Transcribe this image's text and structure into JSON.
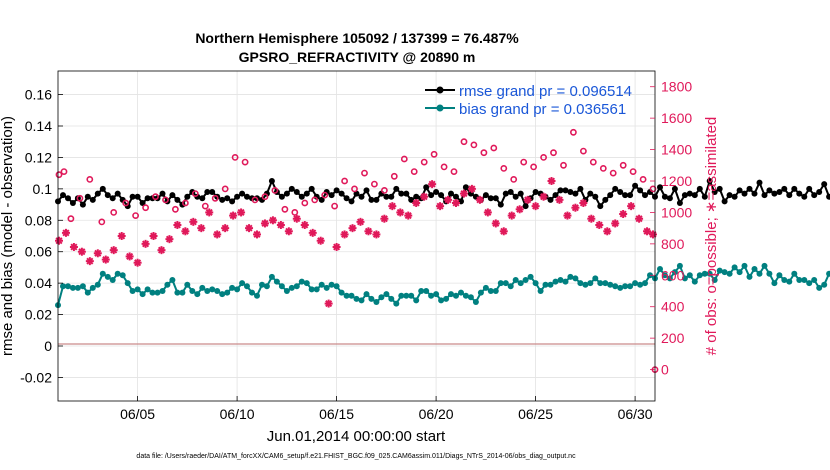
{
  "chart_data": {
    "type": "line",
    "title_line1": "Northern Hemisphere 105092 / 137399 = 76.487%",
    "title_line2": "GPSRO_REFRACTIVITY @ 20890 m",
    "xlabel": "Jun.01,2014 00:00:00 start",
    "ylabel_left": "rmse and bias (model - observation)",
    "ylabel_right": "# of obs: o=possible; ∗=assimilated",
    "footer": "data file: /Users/raeder/DAI/ATM_forcXX/CAM6_setup/f.e21.FHIST_BGC.f09_025.CAM6assim.011/Diags_NTrS_2014-06/obs_diag_output.nc",
    "x_range_days": [
      1.0,
      31.0
    ],
    "x_ticks": [
      {
        "day": 5,
        "label": "06/05"
      },
      {
        "day": 10,
        "label": "06/10"
      },
      {
        "day": 15,
        "label": "06/15"
      },
      {
        "day": 20,
        "label": "06/20"
      },
      {
        "day": 25,
        "label": "06/25"
      },
      {
        "day": 30,
        "label": "06/30"
      }
    ],
    "ylim_left": [
      -0.035,
      0.175
    ],
    "yticks_left": [
      "-0.02",
      "0",
      "0.02",
      "0.04",
      "0.06",
      "0.08",
      "0.1",
      "0.12",
      "0.14",
      "0.16"
    ],
    "ylim_right": [
      -200,
      1900
    ],
    "yticks_right": [
      "0",
      "200",
      "400",
      "600",
      "800",
      "1000",
      "1200",
      "1400",
      "1600",
      "1800"
    ],
    "grid": true,
    "legend_position": "top-right",
    "legend": [
      {
        "label": "rmse grand pr = 0.096514",
        "color": "#000000"
      },
      {
        "label": "bias grand pr = 0.036561",
        "color": "#008080"
      }
    ],
    "series": [
      {
        "name": "rmse",
        "color": "#000000",
        "start_day": 1.0,
        "step_days": 0.25,
        "values": [
          0.092,
          0.096,
          0.094,
          0.091,
          0.094,
          0.09,
          0.095,
          0.093,
          0.097,
          0.1,
          0.096,
          0.094,
          0.097,
          0.093,
          0.089,
          0.095,
          0.095,
          0.091,
          0.094,
          0.094,
          0.094,
          0.097,
          0.092,
          0.096,
          0.093,
          0.09,
          0.095,
          0.098,
          0.095,
          0.094,
          0.098,
          0.098,
          0.095,
          0.093,
          0.094,
          0.092,
          0.095,
          0.097,
          0.095,
          0.094,
          0.094,
          0.093,
          0.097,
          0.105,
          0.098,
          0.095,
          0.097,
          0.1,
          0.098,
          0.095,
          0.097,
          0.1,
          0.095,
          0.093,
          0.098,
          0.096,
          0.099,
          0.097,
          0.094,
          0.092,
          0.097,
          0.095,
          0.099,
          0.093,
          0.093,
          0.097,
          0.095,
          0.095,
          0.1,
          0.097,
          0.097,
          0.093,
          0.095,
          0.094,
          0.101,
          0.096,
          0.098,
          0.096,
          0.092,
          0.097,
          0.095,
          0.092,
          0.101,
          0.097,
          0.095,
          0.093,
          0.096,
          0.094,
          0.094,
          0.09,
          0.097,
          0.098,
          0.095,
          0.097,
          0.089,
          0.094,
          0.098,
          0.097,
          0.095,
          0.093,
          0.096,
          0.099,
          0.099,
          0.098,
          0.097,
          0.1,
          0.093,
          0.097,
          0.095,
          0.089,
          0.093,
          0.096,
          0.1,
          0.098,
          0.096,
          0.096,
          0.102,
          0.099,
          0.096,
          0.098,
          0.095,
          0.101,
          0.095,
          0.094,
          0.1,
          0.091,
          0.096,
          0.097,
          0.096,
          0.1,
          0.095,
          0.105,
          0.098,
          0.1,
          0.092,
          0.096,
          0.095,
          0.099,
          0.097,
          0.1,
          0.097,
          0.104,
          0.096,
          0.099,
          0.097,
          0.098,
          0.1,
          0.096,
          0.1,
          0.097,
          0.095,
          0.1,
          0.096,
          0.098,
          0.103,
          0.095,
          0.095,
          0.098,
          0.094,
          0.097,
          0.103,
          0.106,
          0.097,
          0.094,
          0.097,
          0.099,
          0.098,
          0.097,
          0.095,
          0.1,
          0.103,
          0.096,
          0.1,
          0.094,
          0.096,
          0.097,
          0.094,
          0.098,
          0.104,
          0.098,
          0.097,
          0.092,
          0.099,
          0.093,
          0.097,
          0.096,
          0.092,
          0.095,
          0.094,
          0.094,
          0.1,
          0.096,
          0.091,
          0.088,
          0.094,
          0.096,
          0.089,
          0.096,
          0.091,
          0.092,
          0.089,
          0.091,
          0.09,
          0.096,
          0.093,
          0.09,
          0.094,
          0.096,
          0.095,
          0.089,
          0.096,
          0.09,
          0.094,
          0.092,
          0.094,
          0.091,
          0.09,
          0.088,
          0.091,
          0.094,
          0.091,
          0.09,
          0.087,
          0.095,
          0.088,
          0.089,
          0.093,
          0.087,
          0.096,
          0.09,
          0.093,
          0.089,
          0.087,
          0.088,
          0.095,
          0.089,
          0.09,
          0.086,
          0.092,
          0.089,
          0.095,
          0.092,
          0.087,
          0.09,
          0.091,
          0.088,
          0.093,
          0.088,
          0.09,
          0.089,
          0.094,
          0.086,
          0.085,
          0.09,
          0.088,
          0.094,
          0.085,
          0.089,
          0.091,
          0.091,
          0.09,
          0.087,
          0.091,
          0.088,
          0.089,
          0.087,
          0.088,
          0.095,
          0.091,
          0.093
        ]
      },
      {
        "name": "bias",
        "color": "#008080",
        "start_day": 1.0,
        "step_days": 0.25,
        "values": [
          0.026,
          0.038,
          0.038,
          0.037,
          0.037,
          0.038,
          0.034,
          0.037,
          0.039,
          0.046,
          0.044,
          0.042,
          0.046,
          0.045,
          0.04,
          0.035,
          0.036,
          0.033,
          0.036,
          0.034,
          0.034,
          0.035,
          0.039,
          0.042,
          0.034,
          0.034,
          0.039,
          0.035,
          0.033,
          0.037,
          0.035,
          0.036,
          0.035,
          0.033,
          0.034,
          0.037,
          0.036,
          0.04,
          0.038,
          0.034,
          0.032,
          0.039,
          0.038,
          0.044,
          0.041,
          0.038,
          0.035,
          0.037,
          0.038,
          0.041,
          0.04,
          0.036,
          0.036,
          0.039,
          0.037,
          0.039,
          0.038,
          0.034,
          0.032,
          0.032,
          0.03,
          0.029,
          0.033,
          0.03,
          0.028,
          0.031,
          0.033,
          0.03,
          0.027,
          0.032,
          0.032,
          0.032,
          0.029,
          0.035,
          0.035,
          0.032,
          0.033,
          0.029,
          0.03,
          0.033,
          0.032,
          0.034,
          0.032,
          0.031,
          0.028,
          0.034,
          0.037,
          0.035,
          0.035,
          0.04,
          0.04,
          0.038,
          0.042,
          0.04,
          0.042,
          0.044,
          0.04,
          0.035,
          0.039,
          0.039,
          0.041,
          0.042,
          0.041,
          0.044,
          0.043,
          0.04,
          0.039,
          0.04,
          0.043,
          0.04,
          0.04,
          0.039,
          0.038,
          0.037,
          0.038,
          0.038,
          0.04,
          0.039,
          0.04,
          0.045,
          0.043,
          0.049,
          0.045,
          0.043,
          0.047,
          0.051,
          0.043,
          0.045,
          0.041,
          0.045,
          0.046,
          0.046,
          0.042,
          0.048,
          0.047,
          0.046,
          0.05,
          0.047,
          0.051,
          0.044,
          0.049,
          0.046,
          0.051,
          0.046,
          0.04,
          0.045,
          0.042,
          0.041,
          0.046,
          0.042,
          0.042,
          0.04,
          0.042,
          0.037,
          0.039,
          0.046,
          0.042,
          0.043,
          0.048,
          0.045,
          0.049,
          0.046,
          0.044,
          0.042,
          0.042,
          0.043,
          0.041,
          0.044,
          0.044,
          0.04,
          0.041,
          0.039,
          0.04,
          0.042,
          0.038,
          0.036,
          0.037,
          0.037,
          0.038,
          0.038,
          0.036,
          0.04,
          0.043,
          0.04,
          0.04,
          0.038,
          0.036,
          0.038,
          0.038,
          0.036,
          0.033,
          0.036,
          0.037,
          0.036,
          0.036,
          0.034,
          0.034,
          0.038,
          0.036,
          0.035,
          0.037,
          0.037,
          0.035,
          0.04,
          0.038,
          0.037,
          0.033,
          0.036,
          0.036,
          0.038,
          0.036,
          0.029,
          0.024,
          0.023,
          0.026,
          0.024,
          0.023,
          0.024,
          0.02,
          0.023,
          0.022,
          0.021,
          0.021,
          0.021,
          0.021,
          0.024,
          0.027,
          0.027,
          0.023,
          0.021,
          0.024,
          0.023,
          0.022,
          0.028,
          0.025,
          0.027,
          0.025,
          0.026,
          0.027,
          0.025,
          0.025,
          0.024,
          0.03,
          0.029,
          0.031,
          0.027,
          0.026,
          0.029,
          0.03,
          0.03,
          0.028,
          0.027,
          0.031,
          0.031,
          0.023,
          0.015,
          0.021,
          0.027,
          0.025,
          0.031,
          0.027,
          0.026,
          0.022
        ]
      },
      {
        "name": "# obs possible",
        "color": "#e0195a",
        "marker": "o",
        "points": [
          [
            1.05,
            1240
          ],
          [
            1.3,
            1260
          ],
          [
            1.65,
            960
          ],
          [
            2.1,
            1090
          ],
          [
            2.6,
            1210
          ],
          [
            3.2,
            940
          ],
          [
            3.8,
            1000
          ],
          [
            4.4,
            1060
          ],
          [
            4.9,
            980
          ],
          [
            5.4,
            1030
          ],
          [
            5.9,
            1100
          ],
          [
            6.4,
            1080
          ],
          [
            6.9,
            1020
          ],
          [
            7.4,
            1060
          ],
          [
            7.9,
            1120
          ],
          [
            8.4,
            1040
          ],
          [
            8.9,
            1090
          ],
          [
            9.4,
            1150
          ],
          [
            9.9,
            1350
          ],
          [
            10.4,
            1320
          ],
          [
            10.9,
            1080
          ],
          [
            11.4,
            1100
          ],
          [
            11.9,
            1140
          ],
          [
            12.4,
            1020
          ],
          [
            12.9,
            1000
          ],
          [
            13.4,
            1060
          ],
          [
            13.9,
            1080
          ],
          [
            14.4,
            1110
          ],
          [
            14.9,
            1040
          ],
          [
            15.4,
            1200
          ],
          [
            15.9,
            1150
          ],
          [
            16.4,
            1250
          ],
          [
            16.9,
            1180
          ],
          [
            17.4,
            1140
          ],
          [
            17.9,
            1230
          ],
          [
            18.4,
            1340
          ],
          [
            18.9,
            1260
          ],
          [
            19.4,
            1320
          ],
          [
            19.9,
            1370
          ],
          [
            20.4,
            1290
          ],
          [
            20.9,
            1260
          ],
          [
            21.4,
            1450
          ],
          [
            21.9,
            1430
          ],
          [
            22.4,
            1380
          ],
          [
            22.9,
            1410
          ],
          [
            23.4,
            1280
          ],
          [
            23.9,
            1210
          ],
          [
            24.4,
            1320
          ],
          [
            24.9,
            1290
          ],
          [
            25.4,
            1350
          ],
          [
            25.9,
            1380
          ],
          [
            26.4,
            1300
          ],
          [
            26.9,
            1510
          ],
          [
            27.4,
            1390
          ],
          [
            27.9,
            1320
          ],
          [
            28.4,
            1280
          ],
          [
            28.9,
            1250
          ],
          [
            29.4,
            1300
          ],
          [
            29.9,
            1260
          ],
          [
            30.4,
            1210
          ],
          [
            30.9,
            1150
          ]
        ]
      },
      {
        "name": "# obs assimilated",
        "color": "#e0195a",
        "marker": "*",
        "points": [
          [
            1.05,
            820
          ],
          [
            1.4,
            870
          ],
          [
            1.8,
            780
          ],
          [
            2.2,
            750
          ],
          [
            2.6,
            690
          ],
          [
            3.0,
            740
          ],
          [
            3.4,
            700
          ],
          [
            3.8,
            760
          ],
          [
            4.2,
            850
          ],
          [
            4.6,
            720
          ],
          [
            5.0,
            680
          ],
          [
            5.4,
            800
          ],
          [
            5.8,
            850
          ],
          [
            6.2,
            760
          ],
          [
            6.6,
            830
          ],
          [
            7.0,
            920
          ],
          [
            7.4,
            880
          ],
          [
            7.8,
            940
          ],
          [
            8.2,
            900
          ],
          [
            8.6,
            1000
          ],
          [
            9.0,
            860
          ],
          [
            9.4,
            900
          ],
          [
            9.8,
            980
          ],
          [
            10.2,
            1000
          ],
          [
            10.6,
            900
          ],
          [
            11.0,
            860
          ],
          [
            11.4,
            930
          ],
          [
            11.8,
            950
          ],
          [
            12.2,
            920
          ],
          [
            12.6,
            880
          ],
          [
            13.0,
            960
          ],
          [
            13.4,
            920
          ],
          [
            13.8,
            870
          ],
          [
            14.2,
            820
          ],
          [
            14.6,
            420
          ],
          [
            15.0,
            780
          ],
          [
            15.4,
            860
          ],
          [
            15.8,
            900
          ],
          [
            16.2,
            940
          ],
          [
            16.6,
            880
          ],
          [
            17.0,
            860
          ],
          [
            17.4,
            960
          ],
          [
            17.8,
            1040
          ],
          [
            18.2,
            1000
          ],
          [
            18.6,
            980
          ],
          [
            19.0,
            1060
          ],
          [
            19.4,
            1100
          ],
          [
            19.8,
            1180
          ],
          [
            20.2,
            1040
          ],
          [
            20.6,
            1080
          ],
          [
            21.0,
            1060
          ],
          [
            21.4,
            1120
          ],
          [
            21.8,
            1150
          ],
          [
            22.2,
            1080
          ],
          [
            22.6,
            1000
          ],
          [
            23.0,
            930
          ],
          [
            23.4,
            880
          ],
          [
            23.8,
            980
          ],
          [
            24.2,
            1020
          ],
          [
            24.6,
            1080
          ],
          [
            25.0,
            1040
          ],
          [
            25.4,
            1100
          ],
          [
            25.8,
            1200
          ],
          [
            26.2,
            1080
          ],
          [
            26.6,
            980
          ],
          [
            27.0,
            1030
          ],
          [
            27.4,
            1060
          ],
          [
            27.8,
            960
          ],
          [
            28.2,
            920
          ],
          [
            28.6,
            880
          ],
          [
            29.0,
            930
          ],
          [
            29.4,
            990
          ],
          [
            29.8,
            1040
          ],
          [
            30.2,
            960
          ],
          [
            30.6,
            880
          ],
          [
            30.9,
            860
          ]
        ]
      },
      {
        "name": "# obs at right edge",
        "color": "#e0195a",
        "marker": "o",
        "points": [
          [
            31.0,
            0
          ]
        ]
      }
    ]
  }
}
